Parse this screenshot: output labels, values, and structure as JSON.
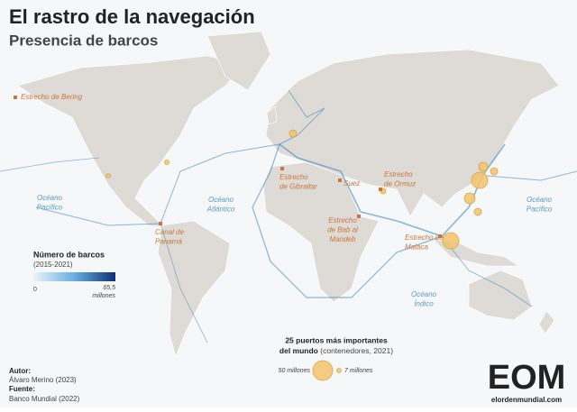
{
  "header": {
    "title": "El rastro de la navegación",
    "subtitle": "Presencia de barcos"
  },
  "straits": [
    {
      "lines": [
        "Estrecho de Bering"
      ]
    },
    {
      "lines": [
        "Estrecho",
        "de Gibraltar"
      ]
    },
    {
      "lines": [
        "Suez"
      ]
    },
    {
      "lines": [
        "Estrecho",
        "de Ormuz"
      ]
    },
    {
      "lines": [
        "Estrecho",
        "de Bab al",
        "Mandeb"
      ]
    },
    {
      "lines": [
        "Estrecho de",
        "Malaca"
      ]
    },
    {
      "lines": [
        "Canal de",
        "Panamá"
      ]
    }
  ],
  "oceans": [
    {
      "lines": [
        "Océano",
        "Pacífico"
      ]
    },
    {
      "lines": [
        "Océano",
        "Atlántico"
      ]
    },
    {
      "lines": [
        "Océano",
        "Índico"
      ]
    },
    {
      "lines": [
        "Océano",
        "Pacífico"
      ]
    }
  ],
  "ships_legend": {
    "title": "Número de barcos",
    "period": "(2015-2021)",
    "min": "0",
    "max": "65,5",
    "max_unit": "millones"
  },
  "ports_legend": {
    "title": "25 puertos más importantes",
    "title_line2": "del mundo",
    "note": "(contenedores, 2021)",
    "large": "50 millones",
    "small": "7 millones"
  },
  "credits": {
    "author_label": "Autor:",
    "author": "Álvaro Merino (2023)",
    "source_label": "Fuente:",
    "source": "Banco Mundial (2022)"
  },
  "logo": {
    "mark": "EOM",
    "site": "elordenmundial.com"
  }
}
